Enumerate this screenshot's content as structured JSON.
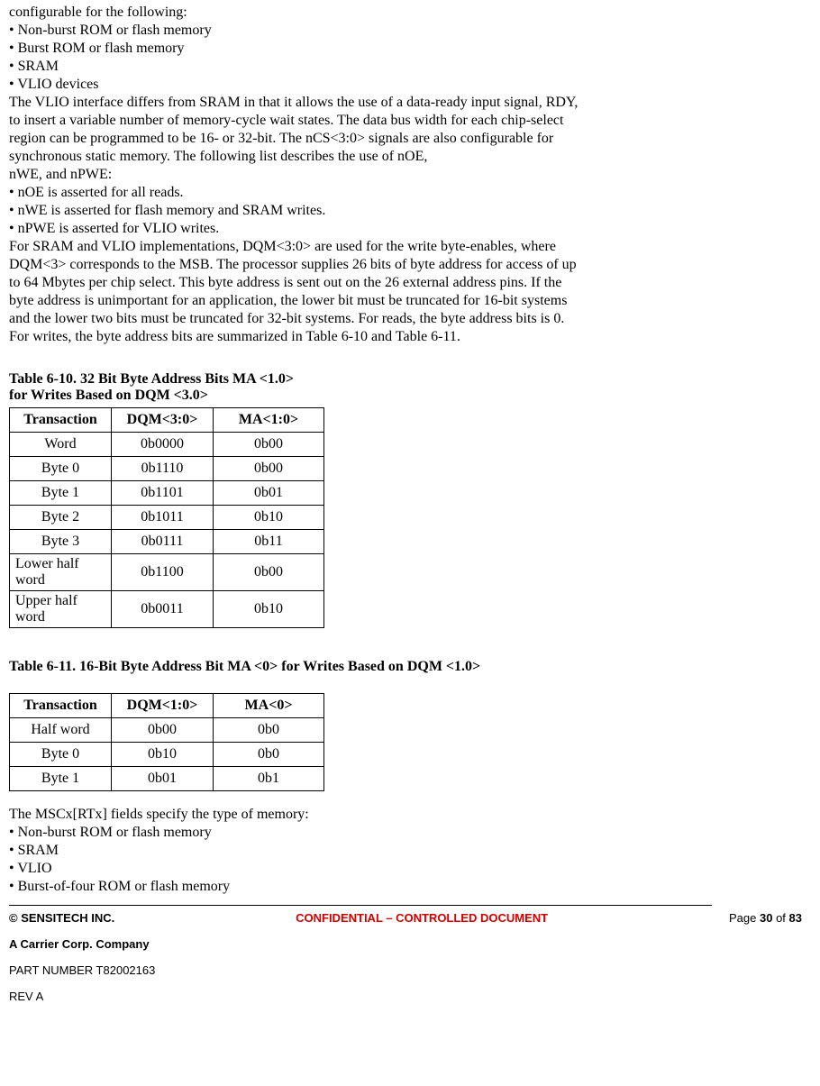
{
  "body": {
    "intro_lines": [
      "configurable for the following:",
      "• Non-burst ROM or flash memory",
      "• Burst ROM or flash memory",
      "• SRAM",
      "• VLIO devices",
      "The VLIO interface differs from SRAM in that it allows the use of a data-ready input signal, RDY,",
      "to insert a variable number of memory-cycle wait states. The data bus width for each chip-select",
      "region can be programmed to be 16- or 32-bit. The nCS<3:0> signals are also configurable for",
      "synchronous static memory. The following list describes the use of nOE,",
      "nWE, and nPWE:",
      "• nOE is asserted for all reads.",
      "• nWE is asserted for flash memory and SRAM writes.",
      "• nPWE is asserted for VLIO writes.",
      "For SRAM and VLIO implementations, DQM<3:0> are used for the write byte-enables, where",
      "DQM<3> corresponds to the MSB. The processor supplies 26 bits of byte address for access of up",
      "to 64 Mbytes per chip select. This byte address is sent out on the 26 external address pins. If the",
      "byte address is unimportant for an application, the lower bit must be truncated for 16-bit systems",
      "and the lower two bits must be truncated for 32-bit systems. For reads, the byte address bits is 0."
    ],
    "intro_last_prefix": "For writes, the byte addres",
    "intro_last_italic": "s",
    "intro_last_suffix": " bits are summarized in Table 6-10 and Table 6-11."
  },
  "table610": {
    "title_line1": "Table 6-10. 32 Bit Byte Address Bits MA <1.0>",
    "title_line2": "for Writes Based on DQM <3.0>",
    "headers": [
      "Transaction",
      "DQM<3:0>",
      "MA<1:0>"
    ],
    "rows": [
      {
        "c0": "Word",
        "c1": "0b0000",
        "c2": "0b00",
        "left": false
      },
      {
        "c0": "Byte 0",
        "c1": "0b1110",
        "c2": "0b00",
        "left": false
      },
      {
        "c0": "Byte 1",
        "c1": "0b1101",
        "c2": "0b01",
        "left": false
      },
      {
        "c0": "Byte 2",
        "c1": "0b1011",
        "c2": "0b10",
        "left": false
      },
      {
        "c0": "Byte 3",
        "c1": "0b0111",
        "c2": "0b11",
        "left": false
      },
      {
        "c0": "Lower half word",
        "c1": "0b1100",
        "c2": "0b00",
        "left": true
      },
      {
        "c0": "Upper half word",
        "c1": "0b0011",
        "c2": "0b10",
        "left": true
      }
    ]
  },
  "table611": {
    "title": "Table 6-11. 16-Bit Byte Address Bit MA <0> for Writes Based on DQM <1.0>",
    "headers": [
      "Transaction",
      "DQM<1:0>",
      "MA<0>"
    ],
    "rows": [
      {
        "c0": "Half word",
        "c1": "0b00",
        "c2": "0b0"
      },
      {
        "c0": "Byte 0",
        "c1": "0b10",
        "c2": "0b0"
      },
      {
        "c0": "Byte 1",
        "c1": "0b01",
        "c2": "0b1"
      }
    ]
  },
  "after": {
    "lines": [
      "The MSCx[RTx] fields specify the type of memory:",
      "• Non-burst ROM or flash memory",
      "• SRAM",
      "• VLIO",
      "• Burst-of-four ROM or flash memory"
    ]
  },
  "footer": {
    "left": "© SENSITECH INC.",
    "center": "CONFIDENTIAL – CONTROLLED DOCUMENT",
    "right_prefix": "Page ",
    "right_page": "30",
    "right_mid": " of ",
    "right_total": "83",
    "line1": "A Carrier Corp. Company",
    "line2": "PART NUMBER T82002163",
    "line3": "REV A"
  }
}
